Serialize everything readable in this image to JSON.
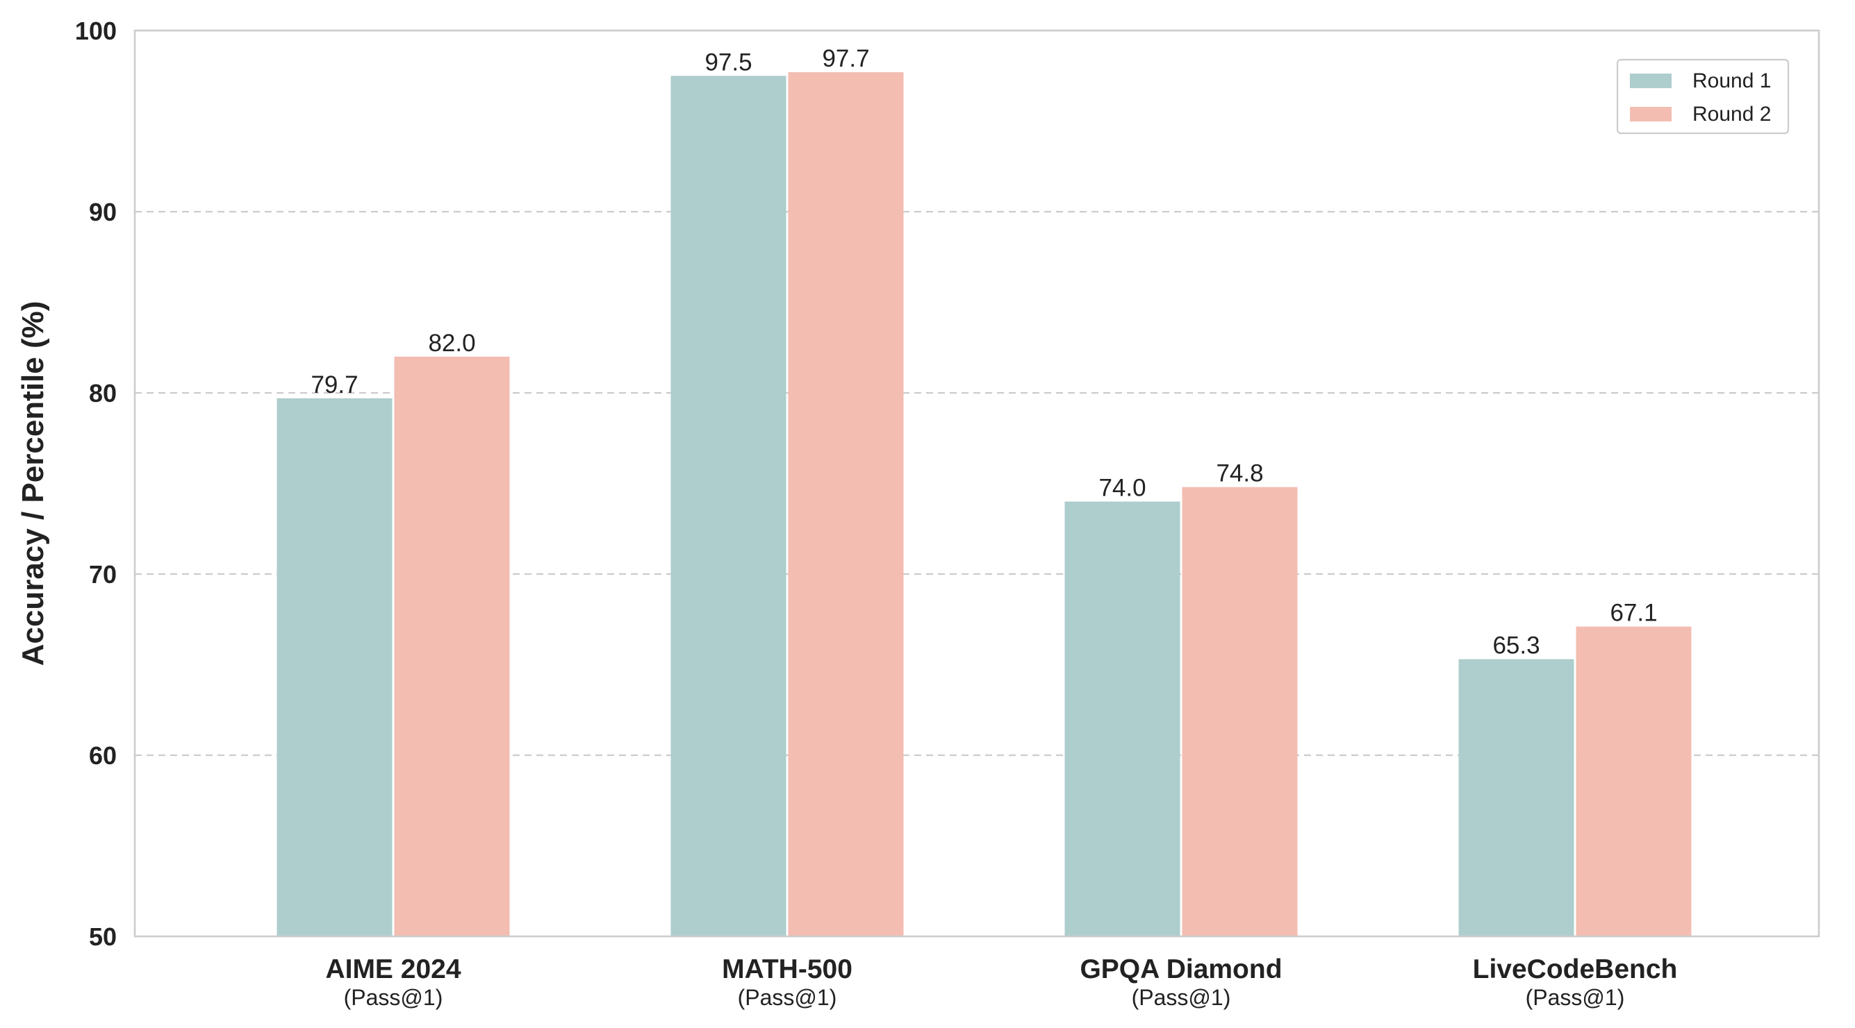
{
  "chart_data": {
    "type": "bar",
    "categories": [
      "AIME 2024",
      "MATH-500",
      "GPQA Diamond",
      "LiveCodeBench"
    ],
    "category_sublabels": [
      "(Pass@1)",
      "(Pass@1)",
      "(Pass@1)",
      "(Pass@1)"
    ],
    "series": [
      {
        "name": "Round 1",
        "values": [
          79.7,
          97.5,
          74.0,
          65.3
        ],
        "color": "#aecdcd"
      },
      {
        "name": "Round 2",
        "values": [
          82.0,
          97.7,
          74.8,
          67.1
        ],
        "color": "#f3bdb2"
      }
    ],
    "title": "",
    "xlabel": "",
    "ylabel": "Accuracy / Percentile (%)",
    "ylim": [
      50,
      100
    ],
    "yticks": [
      50,
      60,
      70,
      80,
      90,
      100
    ],
    "grid": "y, dashed",
    "legend_placement": "top-right",
    "value_label_format": "one decimal"
  }
}
